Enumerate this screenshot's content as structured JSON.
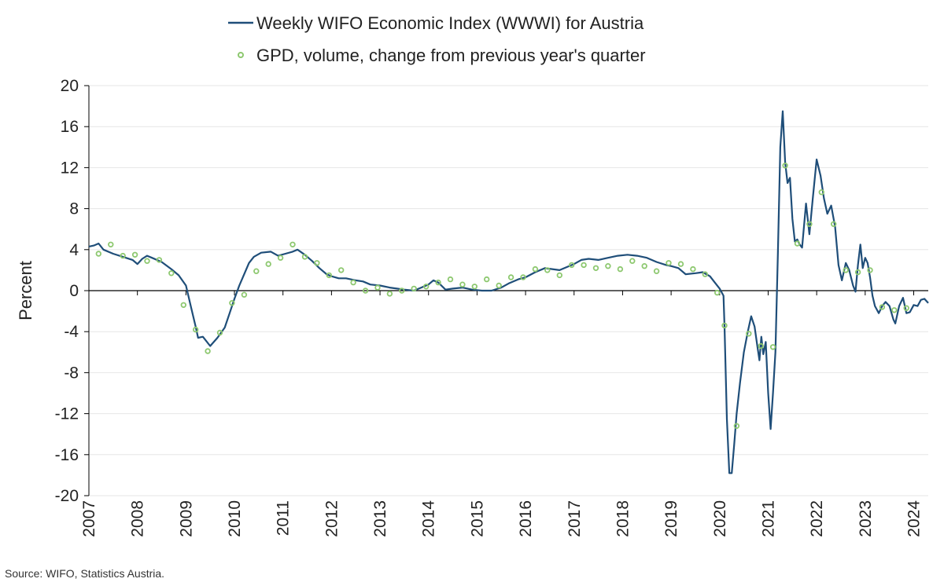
{
  "source": "Source: WIFO, Statistics Austria.",
  "colors": {
    "line": "#1f4e79",
    "dots": "#8dc86f",
    "grid": "#e6e6e6",
    "axis": "#000000"
  },
  "chart_data": {
    "type": "line",
    "ylabel": "Percent",
    "ylim": [
      -20,
      20
    ],
    "xlim": [
      2007,
      2024.3
    ],
    "y_ticks": [
      20,
      16,
      12,
      8,
      4,
      0,
      -4,
      -8,
      -12,
      -16,
      -20
    ],
    "x_ticks": [
      2007,
      2008,
      2009,
      2010,
      2011,
      2012,
      2013,
      2014,
      2015,
      2016,
      2017,
      2018,
      2019,
      2020,
      2021,
      2022,
      2023,
      2024
    ],
    "grid": true,
    "legend_position": "top-center",
    "series": [
      {
        "name": "Weekly WIFO Economic Index (WWWI) for Austria",
        "kind": "line",
        "points": [
          [
            2007.0,
            4.3
          ],
          [
            2007.1,
            4.4
          ],
          [
            2007.2,
            4.6
          ],
          [
            2007.3,
            4.0
          ],
          [
            2007.5,
            3.6
          ],
          [
            2007.7,
            3.3
          ],
          [
            2007.9,
            3.0
          ],
          [
            2008.0,
            2.6
          ],
          [
            2008.1,
            3.1
          ],
          [
            2008.2,
            3.4
          ],
          [
            2008.3,
            3.2
          ],
          [
            2008.5,
            2.8
          ],
          [
            2008.7,
            2.1
          ],
          [
            2008.85,
            1.5
          ],
          [
            2009.0,
            0.5
          ],
          [
            2009.1,
            -1.5
          ],
          [
            2009.2,
            -3.5
          ],
          [
            2009.25,
            -4.6
          ],
          [
            2009.35,
            -4.5
          ],
          [
            2009.5,
            -5.4
          ],
          [
            2009.65,
            -4.6
          ],
          [
            2009.8,
            -3.6
          ],
          [
            2009.9,
            -2.2
          ],
          [
            2010.0,
            -0.8
          ],
          [
            2010.1,
            0.5
          ],
          [
            2010.2,
            1.6
          ],
          [
            2010.3,
            2.7
          ],
          [
            2010.4,
            3.3
          ],
          [
            2010.55,
            3.7
          ],
          [
            2010.75,
            3.8
          ],
          [
            2010.9,
            3.4
          ],
          [
            2011.05,
            3.6
          ],
          [
            2011.2,
            3.8
          ],
          [
            2011.3,
            4.0
          ],
          [
            2011.45,
            3.5
          ],
          [
            2011.6,
            2.9
          ],
          [
            2011.75,
            2.2
          ],
          [
            2011.9,
            1.6
          ],
          [
            2012.0,
            1.4
          ],
          [
            2012.15,
            1.2
          ],
          [
            2012.3,
            1.2
          ],
          [
            2012.5,
            1.0
          ],
          [
            2012.65,
            0.9
          ],
          [
            2012.8,
            0.6
          ],
          [
            2013.0,
            0.5
          ],
          [
            2013.2,
            0.3
          ],
          [
            2013.35,
            0.2
          ],
          [
            2013.5,
            0.1
          ],
          [
            2013.7,
            0.0
          ],
          [
            2013.85,
            0.3
          ],
          [
            2014.0,
            0.6
          ],
          [
            2014.1,
            1.0
          ],
          [
            2014.2,
            0.8
          ],
          [
            2014.35,
            0.1
          ],
          [
            2014.5,
            0.2
          ],
          [
            2014.7,
            0.3
          ],
          [
            2014.9,
            0.1
          ],
          [
            2015.1,
            0.0
          ],
          [
            2015.3,
            0.0
          ],
          [
            2015.5,
            0.3
          ],
          [
            2015.65,
            0.7
          ],
          [
            2015.85,
            1.1
          ],
          [
            2016.0,
            1.3
          ],
          [
            2016.2,
            1.8
          ],
          [
            2016.4,
            2.2
          ],
          [
            2016.55,
            2.1
          ],
          [
            2016.7,
            2.0
          ],
          [
            2016.85,
            2.3
          ],
          [
            2017.0,
            2.6
          ],
          [
            2017.15,
            3.0
          ],
          [
            2017.3,
            3.1
          ],
          [
            2017.5,
            3.0
          ],
          [
            2017.7,
            3.2
          ],
          [
            2017.9,
            3.4
          ],
          [
            2018.1,
            3.5
          ],
          [
            2018.3,
            3.4
          ],
          [
            2018.5,
            3.2
          ],
          [
            2018.7,
            2.8
          ],
          [
            2018.9,
            2.5
          ],
          [
            2019.0,
            2.4
          ],
          [
            2019.15,
            2.2
          ],
          [
            2019.3,
            1.6
          ],
          [
            2019.5,
            1.7
          ],
          [
            2019.65,
            1.8
          ],
          [
            2019.8,
            1.4
          ],
          [
            2019.9,
            0.8
          ],
          [
            2020.0,
            0.2
          ],
          [
            2020.08,
            -0.5
          ],
          [
            2020.1,
            -3.5
          ],
          [
            2020.15,
            -12.5
          ],
          [
            2020.2,
            -17.8
          ],
          [
            2020.25,
            -17.8
          ],
          [
            2020.3,
            -15.0
          ],
          [
            2020.35,
            -12.0
          ],
          [
            2020.42,
            -9.0
          ],
          [
            2020.5,
            -6.0
          ],
          [
            2020.58,
            -4.0
          ],
          [
            2020.65,
            -2.5
          ],
          [
            2020.72,
            -3.5
          ],
          [
            2020.78,
            -5.5
          ],
          [
            2020.82,
            -6.8
          ],
          [
            2020.86,
            -4.5
          ],
          [
            2020.9,
            -6.2
          ],
          [
            2020.95,
            -5.0
          ],
          [
            2021.0,
            -10.0
          ],
          [
            2021.05,
            -13.5
          ],
          [
            2021.1,
            -10.0
          ],
          [
            2021.15,
            -6.0
          ],
          [
            2021.2,
            3.5
          ],
          [
            2021.25,
            14.0
          ],
          [
            2021.3,
            17.5
          ],
          [
            2021.35,
            12.5
          ],
          [
            2021.4,
            10.5
          ],
          [
            2021.45,
            11.0
          ],
          [
            2021.5,
            7.0
          ],
          [
            2021.55,
            4.8
          ],
          [
            2021.6,
            5.0
          ],
          [
            2021.65,
            4.5
          ],
          [
            2021.7,
            4.2
          ],
          [
            2021.78,
            8.5
          ],
          [
            2021.85,
            5.5
          ],
          [
            2021.92,
            9.0
          ],
          [
            2022.0,
            12.8
          ],
          [
            2022.08,
            11.2
          ],
          [
            2022.15,
            9.0
          ],
          [
            2022.22,
            7.5
          ],
          [
            2022.3,
            8.3
          ],
          [
            2022.38,
            6.2
          ],
          [
            2022.45,
            2.5
          ],
          [
            2022.52,
            1.0
          ],
          [
            2022.6,
            2.7
          ],
          [
            2022.67,
            2.0
          ],
          [
            2022.75,
            0.5
          ],
          [
            2022.8,
            -0.1
          ],
          [
            2022.85,
            2.5
          ],
          [
            2022.9,
            4.5
          ],
          [
            2022.95,
            2.2
          ],
          [
            2023.0,
            3.2
          ],
          [
            2023.05,
            2.7
          ],
          [
            2023.1,
            1.3
          ],
          [
            2023.15,
            -0.5
          ],
          [
            2023.2,
            -1.5
          ],
          [
            2023.28,
            -2.2
          ],
          [
            2023.35,
            -1.5
          ],
          [
            2023.42,
            -1.1
          ],
          [
            2023.5,
            -1.5
          ],
          [
            2023.58,
            -2.8
          ],
          [
            2023.62,
            -3.2
          ],
          [
            2023.7,
            -1.5
          ],
          [
            2023.78,
            -0.7
          ],
          [
            2023.85,
            -2.2
          ],
          [
            2023.92,
            -2.1
          ],
          [
            2024.0,
            -1.4
          ],
          [
            2024.08,
            -1.5
          ],
          [
            2024.15,
            -0.9
          ],
          [
            2024.22,
            -0.8
          ],
          [
            2024.3,
            -1.2
          ]
        ]
      },
      {
        "name": "GPD, volume, change from previous year's quarter",
        "kind": "scatter",
        "points": [
          [
            2007.2,
            3.6
          ],
          [
            2007.45,
            4.5
          ],
          [
            2007.7,
            3.4
          ],
          [
            2007.95,
            3.5
          ],
          [
            2008.2,
            2.9
          ],
          [
            2008.45,
            3.0
          ],
          [
            2008.7,
            1.7
          ],
          [
            2008.95,
            -1.4
          ],
          [
            2009.2,
            -3.8
          ],
          [
            2009.45,
            -5.9
          ],
          [
            2009.7,
            -4.1
          ],
          [
            2009.95,
            -1.2
          ],
          [
            2010.2,
            -0.4
          ],
          [
            2010.45,
            1.9
          ],
          [
            2010.7,
            2.6
          ],
          [
            2010.95,
            3.2
          ],
          [
            2011.2,
            4.5
          ],
          [
            2011.45,
            3.3
          ],
          [
            2011.7,
            2.7
          ],
          [
            2011.95,
            1.5
          ],
          [
            2012.2,
            2.0
          ],
          [
            2012.45,
            0.8
          ],
          [
            2012.7,
            0.0
          ],
          [
            2012.95,
            0.3
          ],
          [
            2013.2,
            -0.3
          ],
          [
            2013.45,
            0.0
          ],
          [
            2013.7,
            0.2
          ],
          [
            2013.95,
            0.4
          ],
          [
            2014.2,
            0.8
          ],
          [
            2014.45,
            1.1
          ],
          [
            2014.7,
            0.6
          ],
          [
            2014.95,
            0.4
          ],
          [
            2015.2,
            1.1
          ],
          [
            2015.45,
            0.5
          ],
          [
            2015.7,
            1.3
          ],
          [
            2015.95,
            1.3
          ],
          [
            2016.2,
            2.1
          ],
          [
            2016.45,
            2.0
          ],
          [
            2016.7,
            1.5
          ],
          [
            2016.95,
            2.5
          ],
          [
            2017.2,
            2.5
          ],
          [
            2017.45,
            2.2
          ],
          [
            2017.7,
            2.4
          ],
          [
            2017.95,
            2.1
          ],
          [
            2018.2,
            2.9
          ],
          [
            2018.45,
            2.4
          ],
          [
            2018.7,
            1.9
          ],
          [
            2018.95,
            2.7
          ],
          [
            2019.2,
            2.6
          ],
          [
            2019.45,
            2.1
          ],
          [
            2019.7,
            1.6
          ],
          [
            2019.95,
            -0.2
          ],
          [
            2020.1,
            -3.4
          ],
          [
            2020.35,
            -13.2
          ],
          [
            2020.6,
            -4.2
          ],
          [
            2020.85,
            -5.4
          ],
          [
            2021.1,
            -5.5
          ],
          [
            2021.35,
            12.2
          ],
          [
            2021.6,
            4.6
          ],
          [
            2021.85,
            6.5
          ],
          [
            2022.1,
            9.6
          ],
          [
            2022.35,
            6.5
          ],
          [
            2022.6,
            2.0
          ],
          [
            2022.85,
            1.8
          ],
          [
            2023.1,
            2.0
          ],
          [
            2023.35,
            -1.6
          ],
          [
            2023.6,
            -1.9
          ],
          [
            2023.85,
            -1.7
          ]
        ]
      }
    ]
  }
}
